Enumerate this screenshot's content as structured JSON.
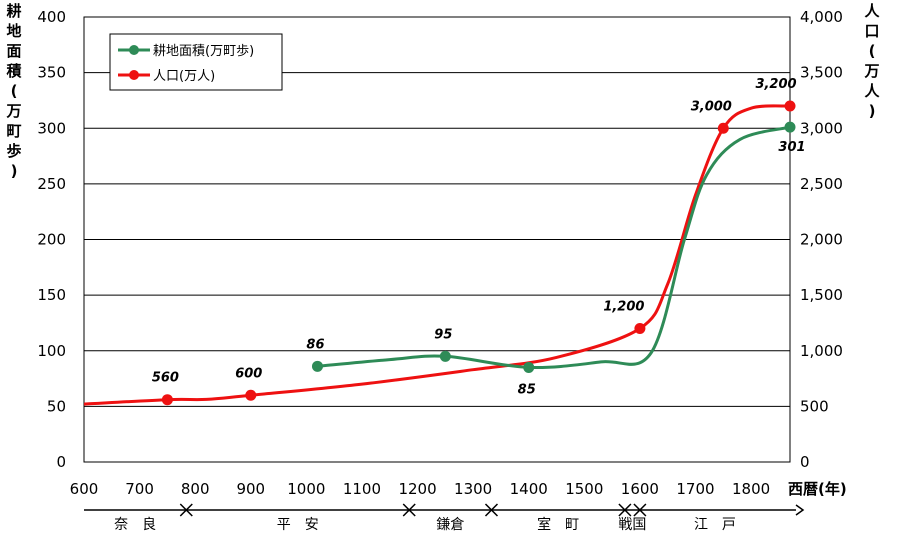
{
  "chart_data": {
    "type": "line",
    "x_ticks": [
      "600",
      "700",
      "800",
      "900",
      "1000",
      "1100",
      "1200",
      "1300",
      "1400",
      "1500",
      "1600",
      "1700",
      "1800"
    ],
    "xlim": [
      600,
      1870
    ],
    "xlabel": "西暦(年)",
    "y_left": {
      "label": "耕地面積(万町歩)",
      "ylim": [
        0,
        400
      ],
      "ticks": [
        "0",
        "50",
        "100",
        "150",
        "200",
        "250",
        "300",
        "350",
        "400"
      ]
    },
    "y_right": {
      "label": "人口(万人)",
      "ylim": [
        0,
        4000
      ],
      "ticks": [
        "0",
        "500",
        "1,000",
        "1,500",
        "2,000",
        "2,500",
        "3,000",
        "3,500",
        "4,000"
      ]
    },
    "grid": "horizontal",
    "legend": "top-left",
    "series": [
      {
        "name": "耕地面積(万町歩)",
        "axis": "left",
        "color": "#2e8b57",
        "points": [
          {
            "x": 1020,
            "y": 86,
            "label": "86"
          },
          {
            "x": 1250,
            "y": 95,
            "label": "95"
          },
          {
            "x": 1400,
            "y": 85,
            "label": "85"
          },
          {
            "x": 1870,
            "y": 301,
            "label": "301"
          }
        ]
      },
      {
        "name": "人口(万人)",
        "axis": "right",
        "color": "#ee1111",
        "points": [
          {
            "x": 750,
            "y": 560,
            "label": "560"
          },
          {
            "x": 900,
            "y": 600,
            "label": "600"
          },
          {
            "x": 1600,
            "y": 1200,
            "label": "1,200"
          },
          {
            "x": 1750,
            "y": 3000,
            "label": "3,000"
          },
          {
            "x": 1870,
            "y": 3200,
            "label": "3,200"
          }
        ]
      }
    ],
    "eras": [
      {
        "name": "奈　良",
        "from": 600,
        "to": 784
      },
      {
        "name": "平　安",
        "from": 784,
        "to": 1185
      },
      {
        "name": "鎌倉",
        "from": 1185,
        "to": 1333
      },
      {
        "name": "室　町",
        "from": 1333,
        "to": 1573
      },
      {
        "name": "戦国",
        "from": 1573,
        "to": 1600
      },
      {
        "name": "江　戸",
        "from": 1600,
        "to": 1870
      }
    ]
  }
}
